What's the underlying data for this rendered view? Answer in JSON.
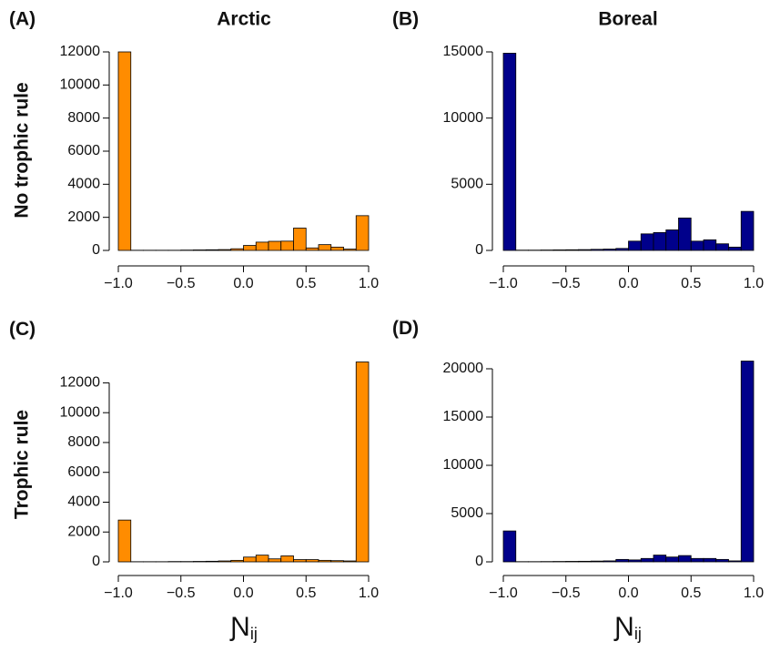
{
  "chart_data": [
    {
      "type": "histogram",
      "panel_label": "(A)",
      "title": "Arctic",
      "ylabel": "No trophic rule",
      "bins": [
        -1.0,
        -0.9,
        -0.8,
        -0.7,
        -0.6,
        -0.5,
        -0.4,
        -0.3,
        -0.2,
        -0.1,
        0.0,
        0.1,
        0.2,
        0.3,
        0.4,
        0.5,
        0.6,
        0.7,
        0.8,
        0.9,
        1.0
      ],
      "values": [
        12000,
        10,
        10,
        10,
        10,
        20,
        30,
        40,
        50,
        100,
        300,
        500,
        550,
        560,
        1350,
        150,
        350,
        200,
        80,
        2100
      ],
      "color": "#ff8c00",
      "xlim": [
        -1,
        1
      ],
      "xticks": [
        {
          "value": -1,
          "label": "−1.0"
        },
        {
          "value": -0.5,
          "label": "−0.5"
        },
        {
          "value": 0,
          "label": "0.0"
        },
        {
          "value": 0.5,
          "label": "0.5"
        },
        {
          "value": 1,
          "label": "1.0"
        }
      ],
      "ylim": [
        0,
        12000
      ],
      "yticks": [
        0,
        2000,
        4000,
        6000,
        8000,
        10000,
        12000
      ]
    },
    {
      "type": "histogram",
      "panel_label": "(B)",
      "title": "Boreal",
      "bins": [
        -1.0,
        -0.9,
        -0.8,
        -0.7,
        -0.6,
        -0.5,
        -0.4,
        -0.3,
        -0.2,
        -0.1,
        0.0,
        0.1,
        0.2,
        0.3,
        0.4,
        0.5,
        0.6,
        0.7,
        0.8,
        0.9,
        1.0
      ],
      "values": [
        14900,
        20,
        20,
        30,
        40,
        50,
        60,
        80,
        100,
        150,
        700,
        1250,
        1350,
        1550,
        2450,
        700,
        800,
        500,
        250,
        2950
      ],
      "color": "#00008b",
      "xlim": [
        -1,
        1
      ],
      "xticks": [
        {
          "value": -1,
          "label": "−1.0"
        },
        {
          "value": -0.5,
          "label": "−0.5"
        },
        {
          "value": 0,
          "label": "0.0"
        },
        {
          "value": 0.5,
          "label": "0.5"
        },
        {
          "value": 1,
          "label": "1.0"
        }
      ],
      "ylim": [
        0,
        15000
      ],
      "yticks": [
        0,
        5000,
        10000,
        15000
      ]
    },
    {
      "type": "histogram",
      "panel_label": "(C)",
      "ylabel": "Trophic rule",
      "xlabel": "Ɲ",
      "xlabel_sub": "ij",
      "bins": [
        -1.0,
        -0.9,
        -0.8,
        -0.7,
        -0.6,
        -0.5,
        -0.4,
        -0.3,
        -0.2,
        -0.1,
        0.0,
        0.1,
        0.2,
        0.3,
        0.4,
        0.5,
        0.6,
        0.7,
        0.8,
        0.9,
        1.0
      ],
      "values": [
        2800,
        10,
        10,
        10,
        20,
        20,
        30,
        40,
        60,
        100,
        320,
        450,
        200,
        400,
        150,
        150,
        100,
        80,
        60,
        13400
      ],
      "color": "#ff8c00",
      "xlim": [
        -1,
        1
      ],
      "xticks": [
        {
          "value": -1,
          "label": "−1.0"
        },
        {
          "value": -0.5,
          "label": "−0.5"
        },
        {
          "value": 0,
          "label": "0.0"
        },
        {
          "value": 0.5,
          "label": "0.5"
        },
        {
          "value": 1,
          "label": "1.0"
        }
      ],
      "ylim": [
        0,
        13400
      ],
      "yticks": [
        0,
        2000,
        4000,
        6000,
        8000,
        10000,
        12000
      ]
    },
    {
      "type": "histogram",
      "panel_label": "(D)",
      "xlabel": "Ɲ",
      "xlabel_sub": "ij",
      "bins": [
        -1.0,
        -0.9,
        -0.8,
        -0.7,
        -0.6,
        -0.5,
        -0.4,
        -0.3,
        -0.2,
        -0.1,
        0.0,
        0.1,
        0.2,
        0.3,
        0.4,
        0.5,
        0.6,
        0.7,
        0.8,
        0.9,
        1.0
      ],
      "values": [
        3200,
        20,
        20,
        30,
        40,
        50,
        60,
        80,
        100,
        250,
        200,
        350,
        700,
        500,
        650,
        350,
        350,
        250,
        100,
        20800
      ],
      "color": "#00008b",
      "xlim": [
        -1,
        1
      ],
      "xticks": [
        {
          "value": -1,
          "label": "−1.0"
        },
        {
          "value": -0.5,
          "label": "−0.5"
        },
        {
          "value": 0,
          "label": "0.0"
        },
        {
          "value": 0.5,
          "label": "0.5"
        },
        {
          "value": 1,
          "label": "1.0"
        }
      ],
      "ylim": [
        0,
        20800
      ],
      "yticks": [
        0,
        5000,
        10000,
        15000,
        20000
      ]
    }
  ]
}
